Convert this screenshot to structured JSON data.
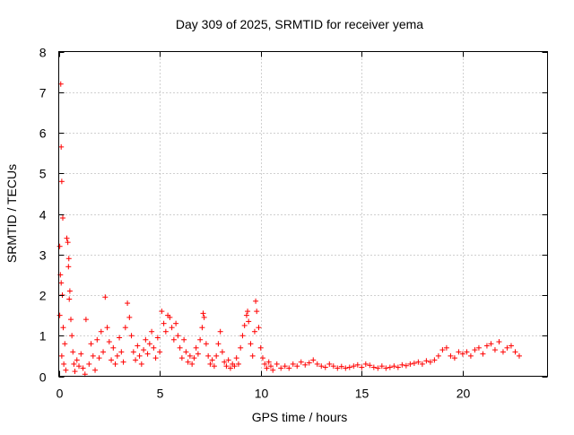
{
  "chart_data": {
    "type": "scatter",
    "title": "Day 309 of 2025, SRMTID for receiver yema",
    "xlabel": "GPS time / hours",
    "ylabel": "SRMTID / TECUs",
    "xlim": [
      0,
      24.2
    ],
    "ylim": [
      0,
      8
    ],
    "xticks": [
      0,
      5,
      10,
      15,
      20
    ],
    "yticks": [
      0,
      1,
      2,
      3,
      4,
      5,
      6,
      7,
      8
    ],
    "grid": true,
    "marker": "plus",
    "series_color": "#ff0000",
    "series": [
      {
        "name": "SRMTID",
        "points": [
          [
            0.05,
            3.2
          ],
          [
            0.1,
            7.2
          ],
          [
            0.12,
            5.65
          ],
          [
            0.15,
            4.8
          ],
          [
            0.2,
            3.9
          ],
          [
            0.08,
            2.5
          ],
          [
            0.12,
            2.3
          ],
          [
            0.18,
            2.0
          ],
          [
            0.05,
            1.5
          ],
          [
            0.22,
            1.2
          ],
          [
            0.3,
            0.8
          ],
          [
            0.15,
            0.5
          ],
          [
            0.25,
            0.3
          ],
          [
            0.35,
            0.15
          ],
          [
            0.4,
            3.4
          ],
          [
            0.45,
            3.3
          ],
          [
            0.5,
            2.9
          ],
          [
            0.48,
            2.7
          ],
          [
            0.55,
            2.1
          ],
          [
            0.52,
            1.9
          ],
          [
            0.6,
            1.4
          ],
          [
            0.65,
            1.0
          ],
          [
            0.7,
            0.6
          ],
          [
            0.75,
            0.3
          ],
          [
            0.8,
            0.12
          ],
          [
            0.9,
            0.4
          ],
          [
            1.0,
            0.25
          ],
          [
            1.1,
            0.55
          ],
          [
            1.2,
            0.2
          ],
          [
            1.3,
            0.05
          ],
          [
            1.35,
            1.4
          ],
          [
            1.5,
            0.3
          ],
          [
            1.6,
            0.8
          ],
          [
            1.7,
            0.5
          ],
          [
            1.8,
            0.15
          ],
          [
            1.9,
            0.9
          ],
          [
            2.0,
            0.45
          ],
          [
            2.1,
            1.1
          ],
          [
            2.2,
            0.6
          ],
          [
            2.3,
            1.95
          ],
          [
            2.4,
            1.2
          ],
          [
            2.5,
            0.85
          ],
          [
            2.6,
            0.4
          ],
          [
            2.7,
            0.7
          ],
          [
            2.8,
            0.3
          ],
          [
            2.9,
            0.5
          ],
          [
            3.0,
            0.95
          ],
          [
            3.1,
            0.6
          ],
          [
            3.2,
            0.35
          ],
          [
            3.3,
            1.2
          ],
          [
            3.4,
            1.8
          ],
          [
            3.5,
            1.45
          ],
          [
            3.6,
            1.0
          ],
          [
            3.7,
            0.6
          ],
          [
            3.8,
            0.4
          ],
          [
            3.9,
            0.75
          ],
          [
            4.0,
            0.5
          ],
          [
            4.1,
            0.3
          ],
          [
            4.2,
            0.65
          ],
          [
            4.3,
            0.9
          ],
          [
            4.4,
            0.55
          ],
          [
            4.5,
            0.8
          ],
          [
            4.6,
            1.1
          ],
          [
            4.7,
            0.7
          ],
          [
            4.8,
            0.45
          ],
          [
            4.9,
            0.95
          ],
          [
            5.0,
            0.6
          ],
          [
            5.1,
            1.6
          ],
          [
            5.2,
            1.3
          ],
          [
            5.3,
            1.1
          ],
          [
            5.4,
            1.5
          ],
          [
            5.5,
            1.45
          ],
          [
            5.6,
            1.2
          ],
          [
            5.7,
            0.9
          ],
          [
            5.8,
            1.3
          ],
          [
            5.9,
            1.0
          ],
          [
            6.0,
            0.7
          ],
          [
            6.1,
            0.45
          ],
          [
            6.2,
            0.9
          ],
          [
            6.3,
            0.6
          ],
          [
            6.4,
            0.35
          ],
          [
            6.5,
            0.5
          ],
          [
            6.6,
            0.3
          ],
          [
            6.7,
            0.45
          ],
          [
            6.8,
            0.7
          ],
          [
            6.9,
            0.55
          ],
          [
            7.0,
            0.9
          ],
          [
            7.1,
            1.2
          ],
          [
            7.15,
            1.55
          ],
          [
            7.2,
            1.45
          ],
          [
            7.3,
            0.8
          ],
          [
            7.4,
            0.5
          ],
          [
            7.5,
            0.3
          ],
          [
            7.6,
            0.4
          ],
          [
            7.7,
            0.25
          ],
          [
            7.8,
            0.5
          ],
          [
            7.9,
            0.8
          ],
          [
            8.0,
            1.1
          ],
          [
            8.1,
            0.6
          ],
          [
            8.2,
            0.35
          ],
          [
            8.3,
            0.25
          ],
          [
            8.4,
            0.4
          ],
          [
            8.5,
            0.2
          ],
          [
            8.6,
            0.3
          ],
          [
            8.7,
            0.25
          ],
          [
            8.8,
            0.45
          ],
          [
            8.9,
            0.3
          ],
          [
            9.0,
            0.7
          ],
          [
            9.1,
            1.0
          ],
          [
            9.2,
            1.25
          ],
          [
            9.3,
            1.5
          ],
          [
            9.35,
            1.6
          ],
          [
            9.4,
            1.35
          ],
          [
            9.5,
            0.8
          ],
          [
            9.6,
            0.5
          ],
          [
            9.7,
            1.1
          ],
          [
            9.75,
            1.85
          ],
          [
            9.8,
            1.6
          ],
          [
            9.9,
            1.2
          ],
          [
            10.0,
            0.7
          ],
          [
            10.1,
            0.45
          ],
          [
            10.2,
            0.3
          ],
          [
            10.3,
            0.2
          ],
          [
            10.4,
            0.35
          ],
          [
            10.5,
            0.25
          ],
          [
            10.6,
            0.15
          ],
          [
            10.8,
            0.3
          ],
          [
            11.0,
            0.2
          ],
          [
            11.2,
            0.25
          ],
          [
            11.4,
            0.2
          ],
          [
            11.6,
            0.3
          ],
          [
            11.8,
            0.25
          ],
          [
            12.0,
            0.35
          ],
          [
            12.2,
            0.28
          ],
          [
            12.4,
            0.33
          ],
          [
            12.6,
            0.4
          ],
          [
            12.8,
            0.3
          ],
          [
            13.0,
            0.25
          ],
          [
            13.2,
            0.22
          ],
          [
            13.4,
            0.3
          ],
          [
            13.6,
            0.25
          ],
          [
            13.8,
            0.2
          ],
          [
            14.0,
            0.24
          ],
          [
            14.2,
            0.2
          ],
          [
            14.4,
            0.22
          ],
          [
            14.6,
            0.25
          ],
          [
            14.8,
            0.28
          ],
          [
            15.0,
            0.22
          ],
          [
            15.2,
            0.3
          ],
          [
            15.4,
            0.27
          ],
          [
            15.6,
            0.22
          ],
          [
            15.8,
            0.2
          ],
          [
            16.0,
            0.25
          ],
          [
            16.2,
            0.2
          ],
          [
            16.4,
            0.22
          ],
          [
            16.6,
            0.25
          ],
          [
            16.8,
            0.22
          ],
          [
            17.0,
            0.28
          ],
          [
            17.2,
            0.26
          ],
          [
            17.4,
            0.3
          ],
          [
            17.6,
            0.32
          ],
          [
            17.8,
            0.35
          ],
          [
            18.0,
            0.3
          ],
          [
            18.2,
            0.38
          ],
          [
            18.4,
            0.35
          ],
          [
            18.6,
            0.4
          ],
          [
            18.8,
            0.5
          ],
          [
            19.0,
            0.65
          ],
          [
            19.2,
            0.7
          ],
          [
            19.4,
            0.5
          ],
          [
            19.6,
            0.45
          ],
          [
            19.8,
            0.6
          ],
          [
            20.0,
            0.55
          ],
          [
            20.2,
            0.6
          ],
          [
            20.4,
            0.5
          ],
          [
            20.6,
            0.65
          ],
          [
            20.8,
            0.7
          ],
          [
            21.0,
            0.55
          ],
          [
            21.2,
            0.75
          ],
          [
            21.4,
            0.8
          ],
          [
            21.6,
            0.65
          ],
          [
            21.8,
            0.85
          ],
          [
            22.0,
            0.6
          ],
          [
            22.2,
            0.7
          ],
          [
            22.4,
            0.75
          ],
          [
            22.6,
            0.6
          ],
          [
            22.8,
            0.5
          ]
        ]
      }
    ]
  }
}
